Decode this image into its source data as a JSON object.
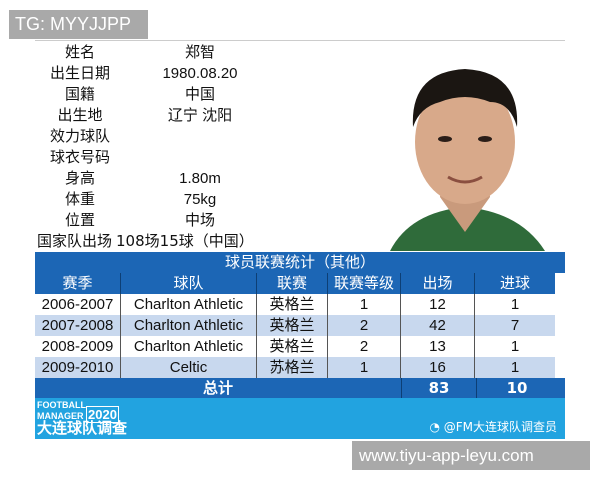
{
  "watermarks": {
    "top": "TG: MYYJJPP",
    "bottom": "www.tiyu-app-leyu.com"
  },
  "profile": [
    {
      "label": "姓名",
      "value": "郑智"
    },
    {
      "label": "出生日期",
      "value": "1980.08.20"
    },
    {
      "label": "国籍",
      "value": "中国"
    },
    {
      "label": "出生地",
      "value": "辽宁 沈阳"
    },
    {
      "label": "效力球队",
      "value": ""
    },
    {
      "label": "球衣号码",
      "value": ""
    },
    {
      "label": "身高",
      "value": "1.80m"
    },
    {
      "label": "体重",
      "value": "75kg"
    },
    {
      "label": "位置",
      "value": "中场"
    }
  ],
  "national": {
    "label": "国家队出场",
    "value": "108场15球（中国）"
  },
  "table": {
    "title": "球员联赛统计（其他）",
    "headers": [
      "赛季",
      "球队",
      "联赛",
      "联赛等级",
      "出场",
      "进球"
    ],
    "rows": [
      [
        "2006-2007",
        "Charlton Athletic",
        "英格兰",
        "1",
        "12",
        "1"
      ],
      [
        "2007-2008",
        "Charlton Athletic",
        "英格兰",
        "2",
        "42",
        "7"
      ],
      [
        "2008-2009",
        "Charlton Athletic",
        "英格兰",
        "2",
        "13",
        "1"
      ],
      [
        "2009-2010",
        "Celtic",
        "苏格兰",
        "1",
        "16",
        "1"
      ]
    ],
    "total": {
      "label": "总计",
      "apps": "83",
      "goals": "10"
    }
  },
  "footer": {
    "logo_line1": "FOOTBALL",
    "logo_line2": "MANAGER",
    "logo_year": "2020",
    "logo_cn": "大连球队调查",
    "weibo": "@FM大连球队调查员"
  },
  "colors": {
    "header_blue": "#1c66b5",
    "alt_row": "#c8d8ee",
    "footer": "#22a3e0"
  }
}
